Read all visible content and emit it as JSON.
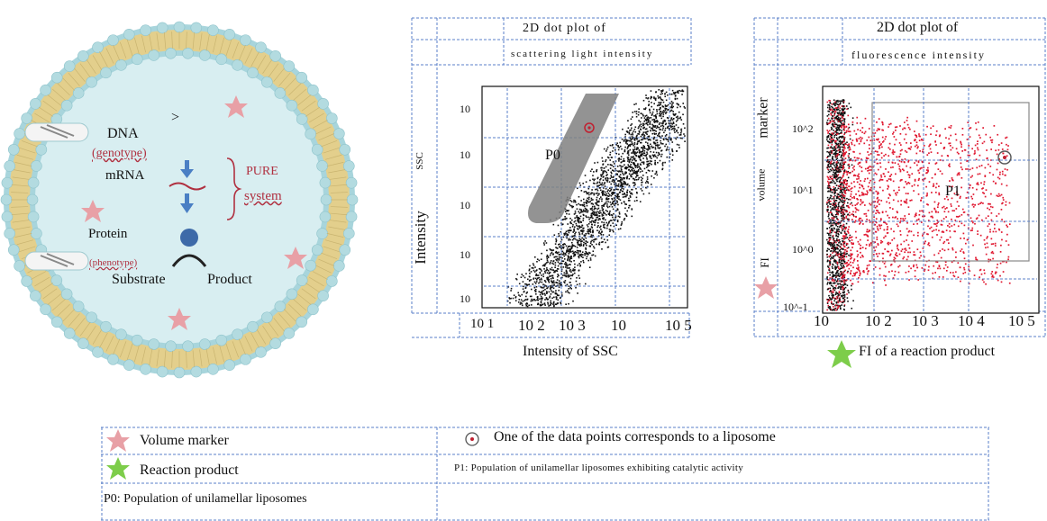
{
  "cell": {
    "dna": "DNA",
    "genotype": "(genotype)",
    "mrna": "mRNA",
    "protein": "Protein",
    "phenotype": "(phenotype)",
    "substrate": "Substrate",
    "product": "Product",
    "pure_line1": "PURE",
    "pure_line2": "system",
    "arrow_glyph": ">"
  },
  "plot1": {
    "title_line1": "2D dot plot of",
    "title_line2": "scattering light intensity",
    "ylabel": "Intensity",
    "ylabel_short": "SSC",
    "xlabel": "Intensity of SSC",
    "gate": "P0",
    "xticks": [
      "10 1",
      "10 2",
      "10 3",
      "10",
      "10 5"
    ],
    "yticks": [
      "10",
      "10",
      "10",
      "10",
      "10"
    ]
  },
  "plot2": {
    "title_line1": "2D dot plot of",
    "title_line2": "fluorescence intensity",
    "ylabel_marker": "marker",
    "ylabel_volume": "volume",
    "ylabel_fi": "FI",
    "gate": "P1",
    "xticks": [
      "10",
      "10 2",
      "10 3",
      "10 4",
      "10 5"
    ],
    "yticks": [
      "10^2",
      "10^1",
      "10^0",
      "10^-1"
    ],
    "star_caption": "FI of a reaction product"
  },
  "legend": {
    "volume_marker": "Volume marker",
    "reaction_product": "Reaction product",
    "p0": "P0: Population of unilamellar liposomes",
    "data_point": "One of the data points corresponds to a liposome",
    "p1": "P1:  Population  of  unilamellar  liposomes  exhibiting  catalytic  activity"
  },
  "colors": {
    "membrane_head": "#b3dbe0",
    "membrane_tail": "#e3cf8c",
    "cytoplasm": "#d8eef1",
    "star_pink": "#e8a0a6",
    "star_green": "#7dcd4a",
    "arrow_blue": "#4a7fc4",
    "scatter_red": "#e01830",
    "grid_blue": "#5a7fc8"
  }
}
